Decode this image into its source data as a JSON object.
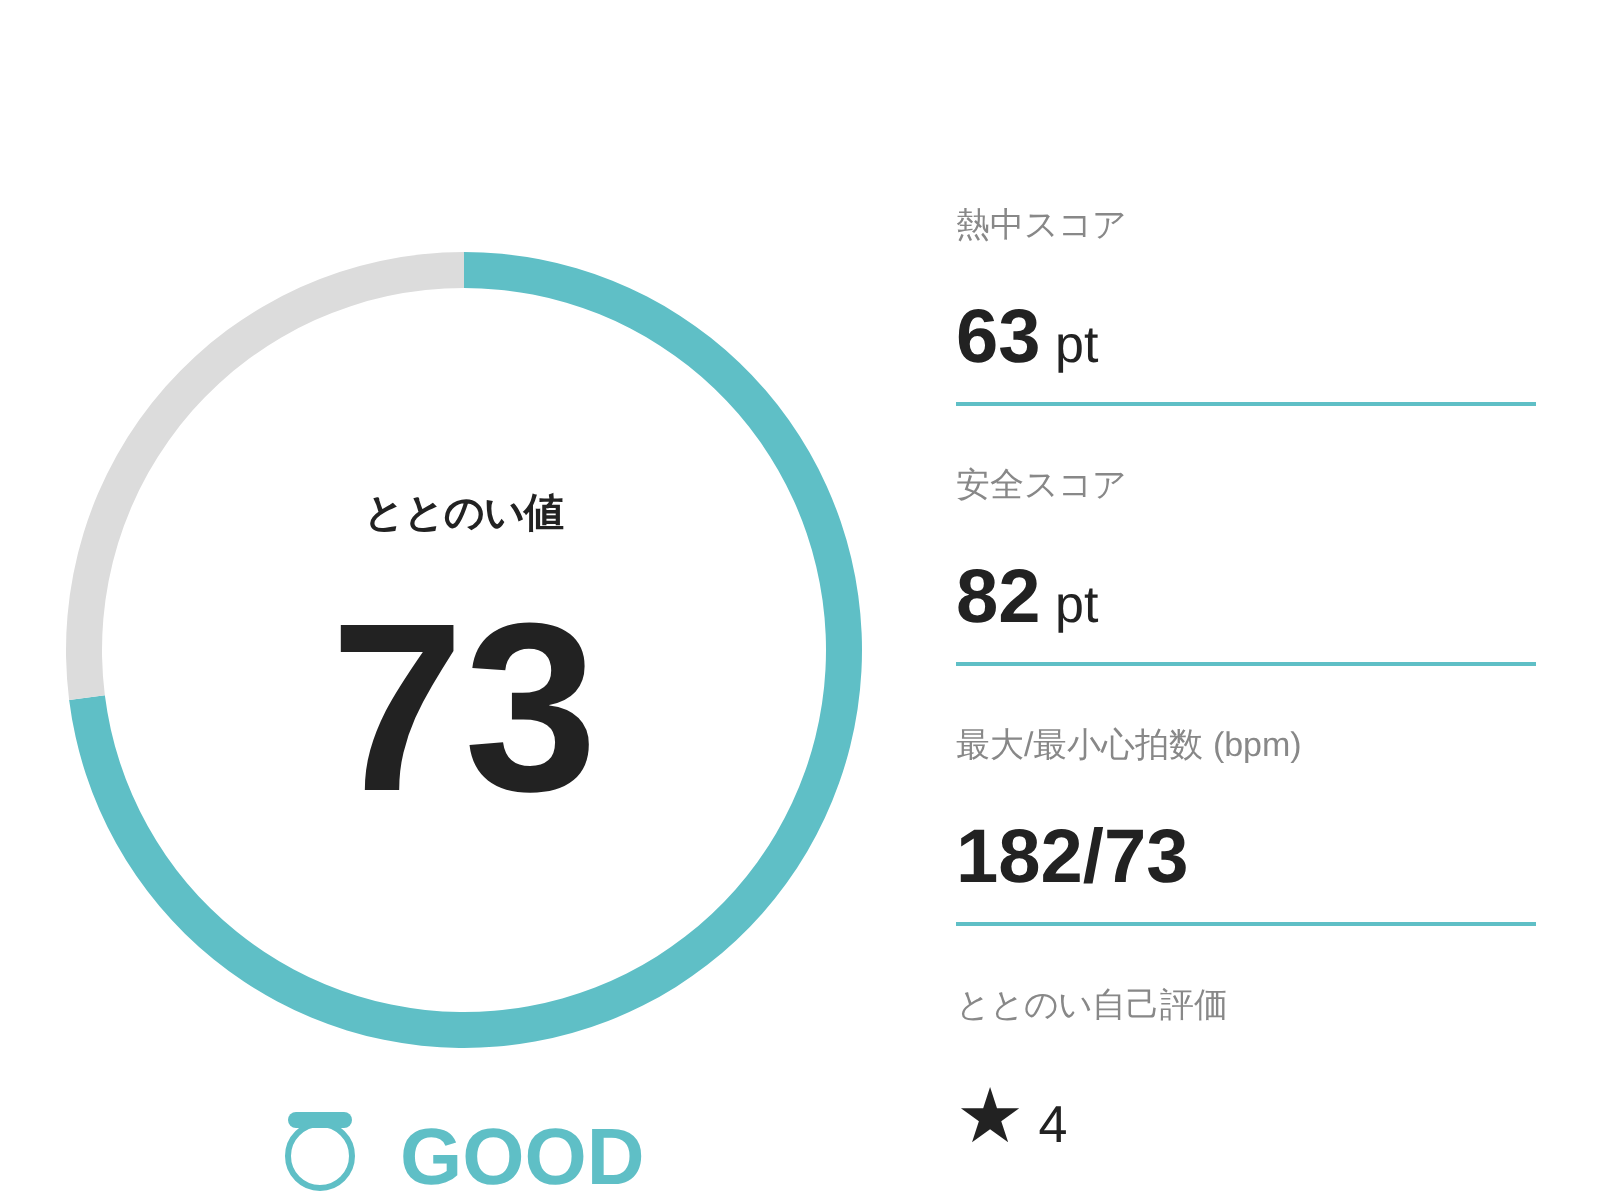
{
  "chart_data": [
    {
      "type": "donut",
      "title": "ととのい値",
      "categories": [
        null,
        null
      ],
      "values": [
        73,
        27
      ],
      "colors": [
        "#5fbfc6",
        "#dcdcdc"
      ],
      "value_labels": [
        "73",
        null
      ],
      "annotations": [
        "GOOD"
      ]
    },
    {
      "type": "other",
      "annotations": [
        "熱中スコア",
        "63 pt",
        "安全スコア",
        "82 pt",
        "最大/最小心拍数 (bpm)",
        "182/73",
        "ととのい自己評価",
        "★ 4"
      ]
    }
  ]
}
